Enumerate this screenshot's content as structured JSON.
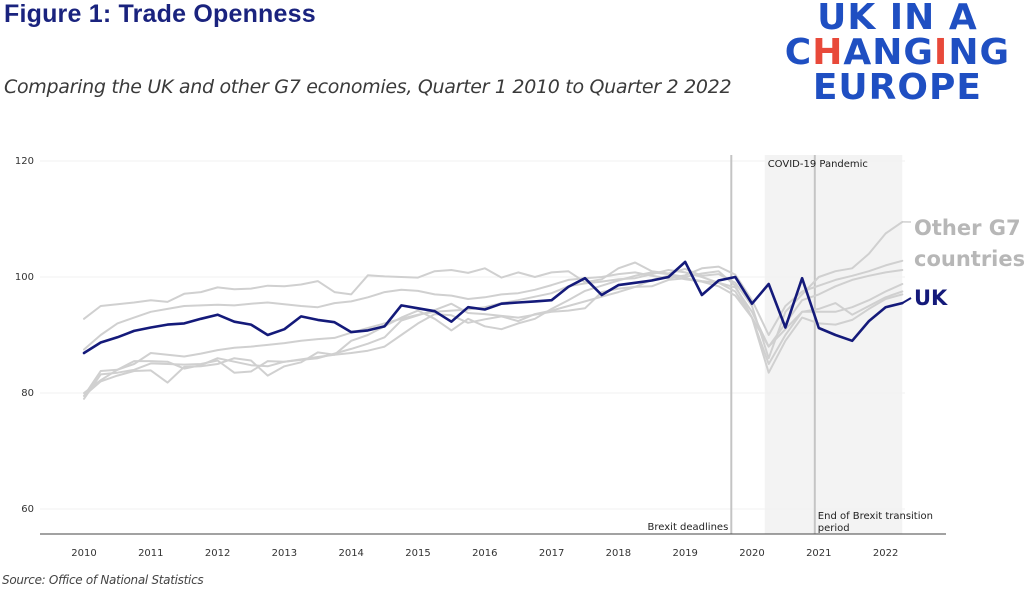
{
  "header": {
    "title": "Figure 1: Trade Openness",
    "subtitle": "Comparing the UK and other G7 economies, Quarter 1 2010 to Quarter 2 2022"
  },
  "logo": {
    "line1": "UK IN A",
    "line2_parts": [
      "C",
      "H",
      "AN",
      "G",
      "I",
      "NG"
    ],
    "line3": "EUROPE",
    "brand_color": "#1f4fc2",
    "accent_color": "#e8493a"
  },
  "footer": {
    "source": "Source: Office of National Statistics"
  },
  "chart_data": {
    "type": "line",
    "title": "Figure 1: Trade Openness",
    "subtitle": "Comparing the UK and other G7 economies, Quarter 1 2010 to Quarter 2 2022",
    "xlabel": "",
    "ylabel": "",
    "ylim": [
      56,
      122
    ],
    "yticks": [
      60,
      80,
      100,
      120
    ],
    "ytick_labels": [
      "60",
      "80",
      "100",
      "120"
    ],
    "x_start": "2010 Q1",
    "x_end": "2022 Q2",
    "xticks": [
      "2010",
      "2011",
      "2012",
      "2013",
      "2014",
      "2015",
      "2016",
      "2017",
      "2018",
      "2019",
      "2020",
      "2021",
      "2022"
    ],
    "grid": true,
    "legend": "direct-labels right",
    "shaded_region": {
      "label": "COVID-19 Pandemic",
      "from": "2020 Q2",
      "to": "2022 Q2"
    },
    "vlines": [
      {
        "label": "Brexit deadlines",
        "at": "2019 Q4"
      },
      {
        "label": "End of Brexit transition period",
        "at": "2021 Q1"
      }
    ],
    "series": [
      {
        "name": "UK",
        "label": "UK",
        "color": "#141a7a",
        "values": [
          86.9,
          88.7,
          89.6,
          90.7,
          91.3,
          91.8,
          92.0,
          92.8,
          93.5,
          92.3,
          91.8,
          90.0,
          91.0,
          93.2,
          92.6,
          92.2,
          90.5,
          90.8,
          91.5,
          95.1,
          94.6,
          94.1,
          92.3,
          94.8,
          94.4,
          95.4,
          95.6,
          95.8,
          96.0,
          98.3,
          99.8,
          96.9,
          98.6,
          99.0,
          99.4,
          100.0,
          102.6,
          96.9,
          99.4,
          100.0,
          95.4,
          98.8,
          91.3,
          99.8,
          91.2,
          90.0,
          89.0,
          92.4,
          94.8,
          95.5
        ]
      },
      {
        "name": "Other G7 1",
        "color": "#d0d0d0",
        "values": [
          92.8,
          95.0,
          95.3,
          95.6,
          96.0,
          95.7,
          97.1,
          97.4,
          98.2,
          97.9,
          98.0,
          98.5,
          98.4,
          98.7,
          99.3,
          97.4,
          97.0,
          100.3,
          100.1,
          100.0,
          99.9,
          101.0,
          101.2,
          100.7,
          101.5,
          99.9,
          100.8,
          100.0,
          100.8,
          101.0,
          99.1,
          99.6,
          101.5,
          102.5,
          101.0,
          100.6,
          101.4,
          100.2,
          100.5,
          99.0,
          95.0,
          86.0,
          94.0,
          97.0,
          100.0,
          101.0,
          101.5,
          104.0,
          107.5,
          109.5
        ]
      },
      {
        "name": "Other G7 2",
        "color": "#d0d0d0",
        "values": [
          87.5,
          90.0,
          92.0,
          93.0,
          94.0,
          94.5,
          95.0,
          95.1,
          95.2,
          95.1,
          95.4,
          95.6,
          95.3,
          95.0,
          94.8,
          95.5,
          95.8,
          96.5,
          97.4,
          97.8,
          97.6,
          97.0,
          96.8,
          96.2,
          96.5,
          97.0,
          97.2,
          97.8,
          98.6,
          99.5,
          99.8,
          100.0,
          100.5,
          100.8,
          100.2,
          99.8,
          100.3,
          101.5,
          101.8,
          100.4,
          96.0,
          90.0,
          95.0,
          97.5,
          98.5,
          99.5,
          100.2,
          101.0,
          102.0,
          102.8
        ]
      },
      {
        "name": "Other G7 3",
        "color": "#d0d0d0",
        "values": [
          79.5,
          83.8,
          84.0,
          85.0,
          86.9,
          86.6,
          86.3,
          86.8,
          87.4,
          87.8,
          88.0,
          88.3,
          88.6,
          89.0,
          89.3,
          89.5,
          90.4,
          91.2,
          92.0,
          92.8,
          93.5,
          94.0,
          94.2,
          94.4,
          94.8,
          95.5,
          96.0,
          96.6,
          97.2,
          98.4,
          98.9,
          99.2,
          99.6,
          99.8,
          100.5,
          101.2,
          100.8,
          100.0,
          99.0,
          98.2,
          94.0,
          88.0,
          92.0,
          96.0,
          97.0,
          98.4,
          99.5,
          100.2,
          100.8,
          101.2
        ]
      },
      {
        "name": "Other G7 4",
        "color": "#d0d0d0",
        "values": [
          80.0,
          82.2,
          84.0,
          85.5,
          85.5,
          85.4,
          84.2,
          84.8,
          86.0,
          85.4,
          84.8,
          84.6,
          85.4,
          85.7,
          86.0,
          86.8,
          87.6,
          88.5,
          89.6,
          92.5,
          93.4,
          94.3,
          95.4,
          93.8,
          93.6,
          93.3,
          93.0,
          93.5,
          94.0,
          94.2,
          94.6,
          97.4,
          98.0,
          98.3,
          98.4,
          99.5,
          99.8,
          99.3,
          99.0,
          97.5,
          93.0,
          85.0,
          90.0,
          94.0,
          94.5,
          95.5,
          93.5,
          95.0,
          96.5,
          97.5
        ]
      },
      {
        "name": "Other G7 5",
        "color": "#d0d0d0",
        "values": [
          79.0,
          83.2,
          83.5,
          84.0,
          85.1,
          85.0,
          84.9,
          85.0,
          85.6,
          83.5,
          83.7,
          85.5,
          85.4,
          85.8,
          86.2,
          86.6,
          86.9,
          87.3,
          88.0,
          90.0,
          92.0,
          93.6,
          93.4,
          92.1,
          92.7,
          93.2,
          92.4,
          93.6,
          94.2,
          95.0,
          95.8,
          96.6,
          97.4,
          98.3,
          99.5,
          100.2,
          99.6,
          99.2,
          98.4,
          96.8,
          93.0,
          88.0,
          91.0,
          94.0,
          94.0,
          94.0,
          94.8,
          96.0,
          97.5,
          98.8
        ]
      },
      {
        "name": "Other G7 6",
        "color": "#d0d0d0",
        "values": [
          79.5,
          82.0,
          83.0,
          83.8,
          83.9,
          81.8,
          84.5,
          84.6,
          85.0,
          86.0,
          85.6,
          83.0,
          84.6,
          85.3,
          87.0,
          86.6,
          89.0,
          90.0,
          91.5,
          93.0,
          94.2,
          92.8,
          90.8,
          92.8,
          91.5,
          91.0,
          92.0,
          92.8,
          94.5,
          96.0,
          97.6,
          98.5,
          99.4,
          100.2,
          100.8,
          100.5,
          100.0,
          100.6,
          101.0,
          98.5,
          93.0,
          83.5,
          89.0,
          93.0,
          92.0,
          91.8,
          92.6,
          94.5,
          96.2,
          97.0
        ]
      }
    ]
  },
  "labels": {
    "other_line1": "Other G7",
    "other_line2": "countries",
    "uk": "UK"
  }
}
